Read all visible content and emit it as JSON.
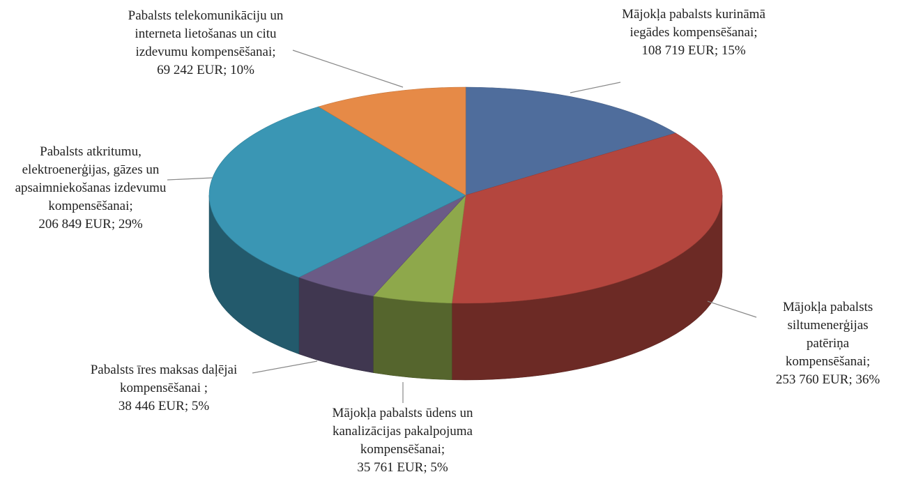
{
  "chart_data": {
    "type": "pie3d",
    "categories": [
      "Mājokļa pabalsts kurināmā iegādes kompensēšanai;",
      "Mājokļa pabalsts siltumenerģijas patēriņa kompensēšanai;",
      "Mājokļa pabalsts ūdens un kanalizācijas pakalpojuma kompensēšanai;",
      "Pabalsts īres maksas daļējai kompensēšanai ;",
      "Pabalsts atkritumu, elektroenerģijas, gāzes un apsaimniekošanas izdevumu kompensēšanai;",
      "Pabalsts telekomunikāciju un interneta lietošanas un citu izdevumu kompensēšanai;"
    ],
    "values": [
      108719,
      253760,
      35761,
      38446,
      206849,
      69242
    ],
    "value_labels": [
      "108 719 EUR; 15%",
      "253 760 EUR; 36%",
      "35 761 EUR; 5%",
      "38 446 EUR; 5%",
      "206 849 EUR; 29%",
      "69 242 EUR; 10%"
    ],
    "colors": [
      "#4f6d9c",
      "#b4463e",
      "#8ea84b",
      "#6b5b86",
      "#3a96b4",
      "#e68a47"
    ]
  }
}
